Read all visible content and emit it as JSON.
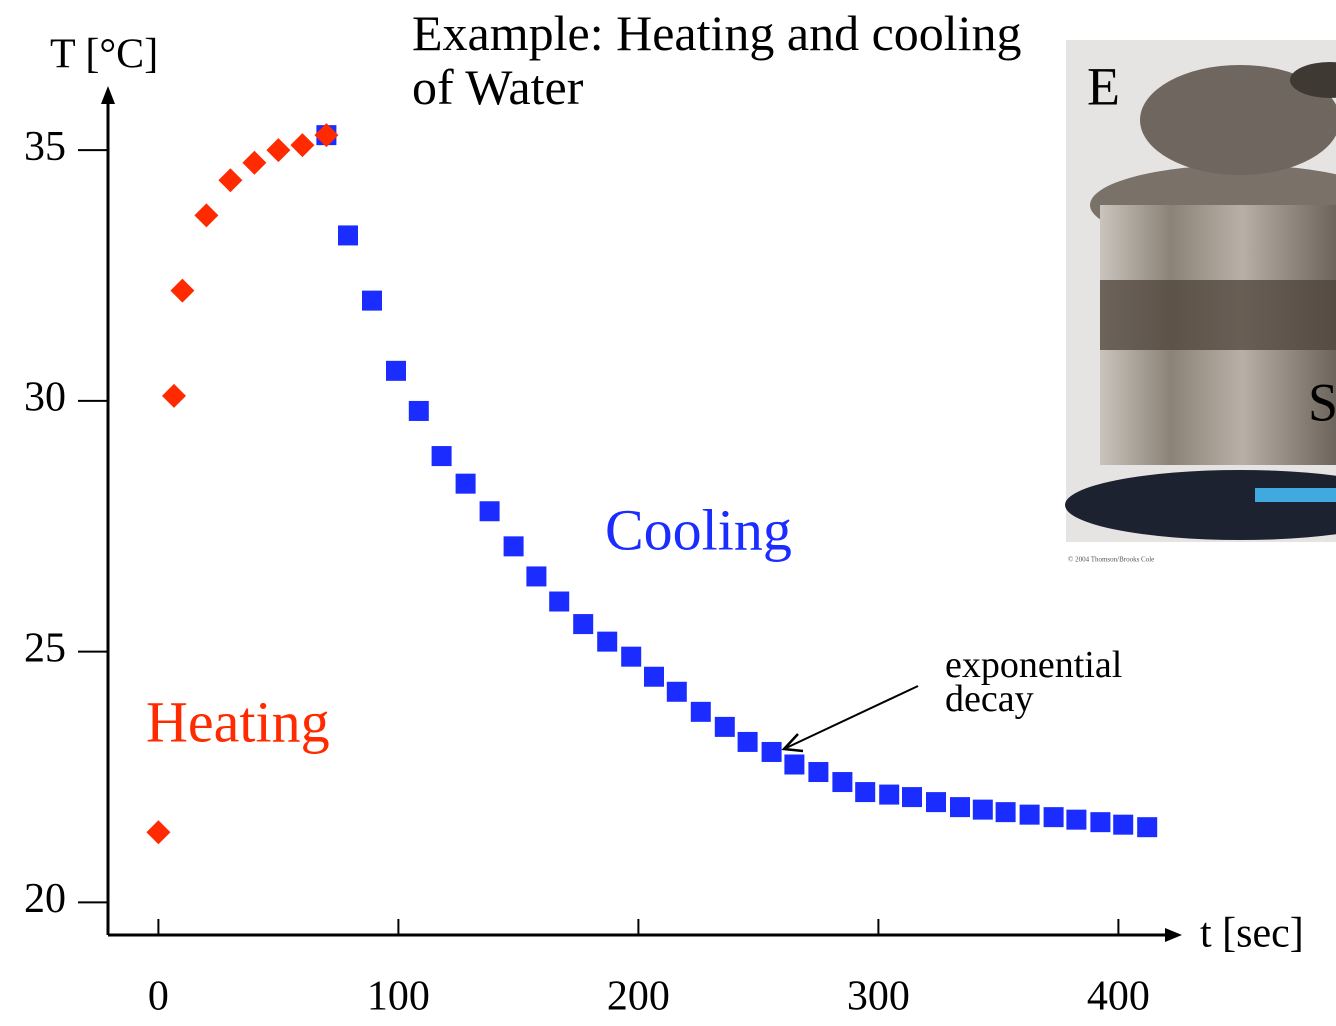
{
  "chart_data": {
    "type": "scatter",
    "title": "Example: Heating and cooling of Water",
    "x_label": "t [sec]",
    "y_label": "T [°C]",
    "xlim": [
      -21,
      424
    ],
    "ylim": [
      19.35,
      36.2
    ],
    "xticks": [
      0,
      100,
      200,
      300,
      400
    ],
    "yticks": [
      20,
      25,
      30,
      35
    ],
    "series": [
      {
        "name": "Heating",
        "color": "#ff2a00",
        "marker": "diamond",
        "x": [
          0,
          6.5,
          10,
          20,
          30,
          40,
          50,
          60,
          70
        ],
        "values": [
          21.4,
          30.1,
          32.2,
          33.7,
          34.4,
          34.75,
          35.0,
          35.1,
          35.3
        ]
      },
      {
        "name": "Cooling",
        "color": "#1a2cff",
        "marker": "square",
        "x": [
          70,
          79,
          89,
          99,
          108.5,
          118,
          128,
          138,
          148,
          157.5,
          167,
          177,
          187,
          197,
          206.5,
          216,
          226,
          236,
          245.5,
          255.5,
          265,
          275,
          285,
          294.5,
          304.5,
          314,
          324,
          334,
          343.5,
          353,
          363,
          373,
          382.5,
          392.5,
          402,
          412
        ],
        "values": [
          35.3,
          33.3,
          32.0,
          30.6,
          29.8,
          28.9,
          28.35,
          27.8,
          27.1,
          26.5,
          26.0,
          25.55,
          25.2,
          24.9,
          24.5,
          24.2,
          23.8,
          23.5,
          23.2,
          23.0,
          22.75,
          22.6,
          22.4,
          22.2,
          22.15,
          22.1,
          22.0,
          21.9,
          21.85,
          21.8,
          21.75,
          21.7,
          21.65,
          21.6,
          21.55,
          21.5
        ]
      }
    ],
    "annotations": [
      "exponential decay"
    ],
    "photo": {
      "labels": [
        "E",
        "S"
      ],
      "credit": "© 2004 Thomson/Brooks Cole"
    }
  }
}
